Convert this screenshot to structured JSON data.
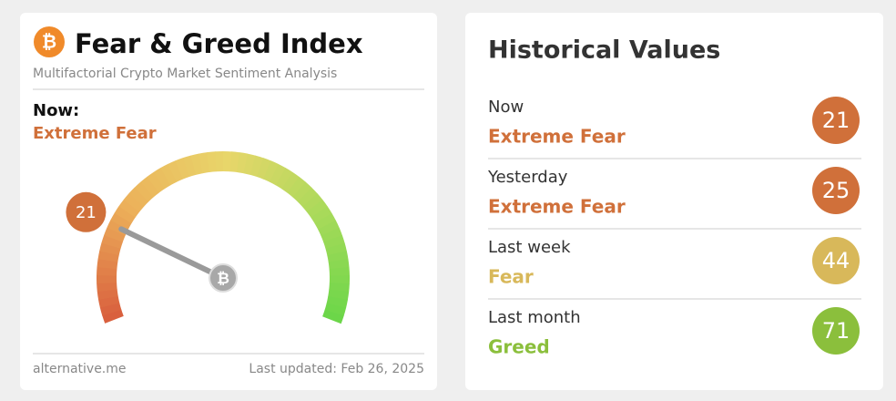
{
  "widget": {
    "title": "Fear & Greed Index",
    "subtitle": "Multifactorial Crypto Market Sentiment Analysis",
    "now_label": "Now:",
    "now_class": "Extreme Fear",
    "now_color": "#d0703a",
    "gauge": {
      "value": 21,
      "lim": [
        0,
        100
      ]
    },
    "source": "alternative.me",
    "updated": "Last updated: Feb 26, 2025"
  },
  "historical": {
    "title": "Historical Values",
    "rows": [
      {
        "label": "Now",
        "class": "Extreme Fear",
        "value": 21,
        "color": "#d0703a"
      },
      {
        "label": "Yesterday",
        "class": "Extreme Fear",
        "value": 25,
        "color": "#d0703a"
      },
      {
        "label": "Last week",
        "class": "Fear",
        "value": 44,
        "color": "#d8b85a"
      },
      {
        "label": "Last month",
        "class": "Greed",
        "value": 71,
        "color": "#8bbf3c"
      }
    ]
  }
}
